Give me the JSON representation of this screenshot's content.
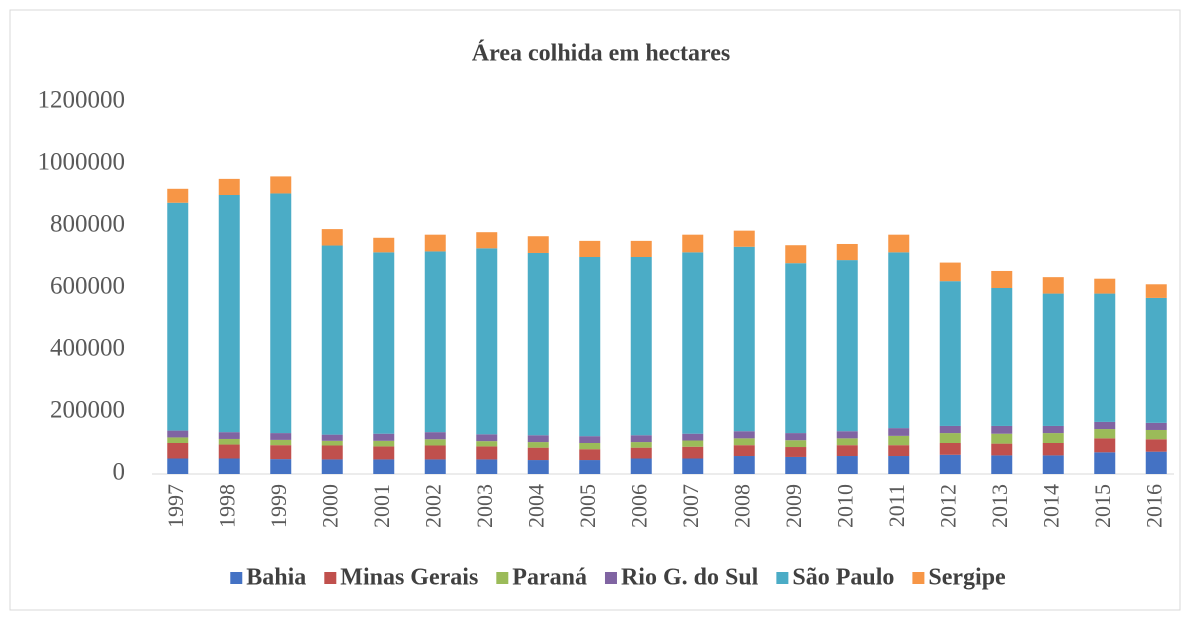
{
  "chart_data": {
    "type": "stacked_bar",
    "title": "Área colhida em hectares",
    "categories": [
      "1997",
      "1998",
      "1999",
      "2000",
      "2001",
      "2002",
      "2003",
      "2004",
      "2005",
      "2006",
      "2007",
      "2008",
      "2009",
      "2010",
      "2011",
      "2012",
      "2013",
      "2014",
      "2015",
      "2016"
    ],
    "series": [
      {
        "name": "Bahia",
        "color": "#4472c4",
        "values": [
          50000,
          50000,
          48000,
          47000,
          47000,
          47000,
          47000,
          45000,
          45000,
          50000,
          50000,
          58000,
          55000,
          58000,
          58000,
          62000,
          60000,
          60000,
          70000,
          72000
        ]
      },
      {
        "name": "Minas Gerais",
        "color": "#c0504d",
        "values": [
          50000,
          45000,
          45000,
          45000,
          42000,
          45000,
          42000,
          40000,
          35000,
          35000,
          38000,
          35000,
          32000,
          35000,
          35000,
          38000,
          38000,
          40000,
          45000,
          40000
        ]
      },
      {
        "name": "Paraná",
        "color": "#9bbb59",
        "values": [
          18000,
          18000,
          17000,
          15000,
          18000,
          20000,
          17000,
          18000,
          20000,
          18000,
          20000,
          22000,
          22000,
          22000,
          30000,
          32000,
          32000,
          32000,
          30000,
          30000
        ]
      },
      {
        "name": "Rio G. do Sul",
        "color": "#8064a2",
        "values": [
          22000,
          22000,
          22000,
          20000,
          23000,
          23000,
          22000,
          22000,
          22000,
          22000,
          22000,
          23000,
          23000,
          23000,
          25000,
          23000,
          25000,
          23000,
          23000,
          23000
        ]
      },
      {
        "name": "São Paulo",
        "color": "#4bacc6",
        "values": [
          735000,
          765000,
          773000,
          610000,
          585000,
          583000,
          600000,
          588000,
          578000,
          575000,
          585000,
          595000,
          548000,
          552000,
          567000,
          467000,
          445000,
          427000,
          414000,
          403000
        ]
      },
      {
        "name": "Sergipe",
        "color": "#f79646",
        "values": [
          45000,
          52000,
          55000,
          53000,
          47000,
          54000,
          52000,
          54000,
          52000,
          52000,
          57000,
          52000,
          58000,
          52000,
          57000,
          60000,
          55000,
          53000,
          48000,
          44000
        ]
      }
    ],
    "ylim": [
      0,
      1200000
    ],
    "yticks": [
      0,
      200000,
      400000,
      600000,
      800000,
      1000000,
      1200000
    ],
    "grid": false,
    "legend": "bottom"
  }
}
